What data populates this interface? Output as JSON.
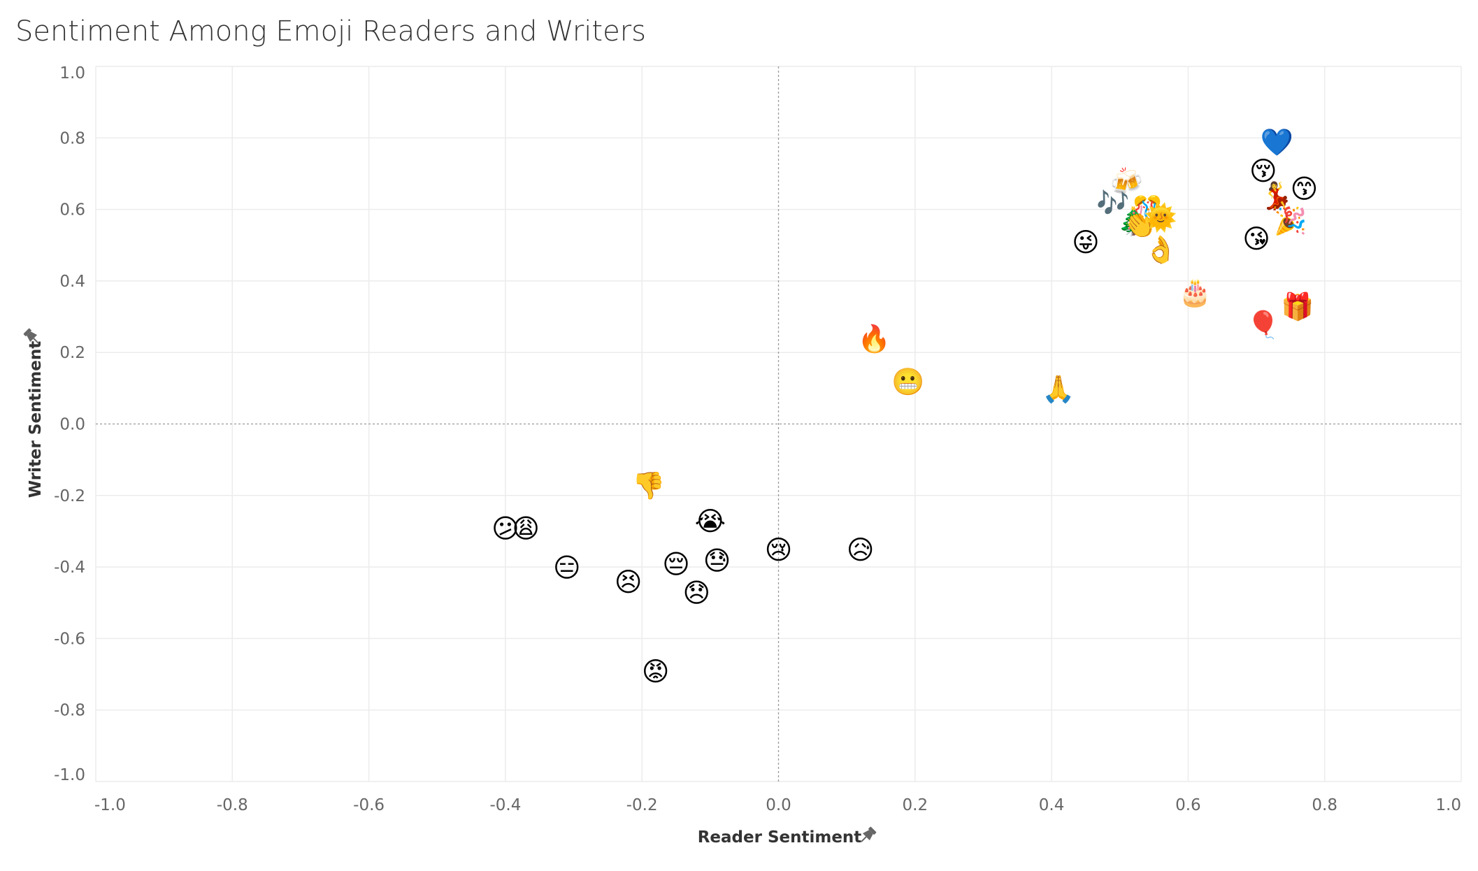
{
  "title": "Sentiment Among Emoji Readers and Writers",
  "pin_icon": "pin-icon",
  "chart_data": {
    "type": "scatter",
    "title": "Sentiment Among Emoji Readers and Writers",
    "xlabel": "Reader Sentiment",
    "ylabel": "Writer Sentiment",
    "xlim": [
      -1.0,
      1.0
    ],
    "ylim": [
      -1.0,
      1.0
    ],
    "x_ticks": [
      "-1.0",
      "-0.8",
      "-0.6",
      "-0.4",
      "-0.2",
      "0.0",
      "0.2",
      "0.4",
      "0.6",
      "0.8",
      "1.0"
    ],
    "y_ticks": [
      "1.0",
      "0.8",
      "0.6",
      "0.4",
      "0.2",
      "0.0",
      "-0.2",
      "-0.4",
      "-0.6",
      "-0.8",
      "-1.0"
    ],
    "grid": true,
    "zero_lines": "dashed",
    "points": [
      {
        "x": 0.73,
        "y": 0.79,
        "emoji": "💙",
        "name": "blue-heart"
      },
      {
        "x": 0.71,
        "y": 0.71,
        "emoji": "😚",
        "name": "kissing-closed-eyes"
      },
      {
        "x": 0.77,
        "y": 0.66,
        "emoji": "😙",
        "name": "kissing-smiling-eyes"
      },
      {
        "x": 0.51,
        "y": 0.68,
        "emoji": "🍻",
        "name": "clinking-beer-mugs"
      },
      {
        "x": 0.49,
        "y": 0.62,
        "emoji": "🎶",
        "name": "musical-notes"
      },
      {
        "x": 0.54,
        "y": 0.6,
        "emoji": "🎊",
        "name": "confetti-ball"
      },
      {
        "x": 0.52,
        "y": 0.57,
        "emoji": "🎄",
        "name": "christmas-tree"
      },
      {
        "x": 0.53,
        "y": 0.56,
        "emoji": "👏",
        "name": "clapping-hands"
      },
      {
        "x": 0.56,
        "y": 0.58,
        "emoji": "🌞",
        "name": "sun-with-face"
      },
      {
        "x": 0.73,
        "y": 0.64,
        "emoji": "💃",
        "name": "dancer"
      },
      {
        "x": 0.75,
        "y": 0.57,
        "emoji": "🎉",
        "name": "party-popper"
      },
      {
        "x": 0.7,
        "y": 0.52,
        "emoji": "😘",
        "name": "face-blowing-kiss"
      },
      {
        "x": 0.45,
        "y": 0.51,
        "emoji": "😜",
        "name": "winking-tongue"
      },
      {
        "x": 0.56,
        "y": 0.49,
        "emoji": "👌",
        "name": "ok-hand"
      },
      {
        "x": 0.61,
        "y": 0.37,
        "emoji": "🎂",
        "name": "birthday-cake"
      },
      {
        "x": 0.76,
        "y": 0.33,
        "emoji": "🎁",
        "name": "wrapped-gift"
      },
      {
        "x": 0.71,
        "y": 0.28,
        "emoji": "🎈",
        "name": "balloon"
      },
      {
        "x": 0.14,
        "y": 0.24,
        "emoji": "🔥",
        "name": "fire"
      },
      {
        "x": 0.19,
        "y": 0.12,
        "emoji": "😬",
        "name": "grimacing"
      },
      {
        "x": 0.41,
        "y": 0.1,
        "emoji": "🙏",
        "name": "folded-hands"
      },
      {
        "x": -0.19,
        "y": -0.17,
        "emoji": "👎",
        "name": "thumbs-down"
      },
      {
        "x": -0.4,
        "y": -0.29,
        "emoji": "😕",
        "name": "confused"
      },
      {
        "x": -0.37,
        "y": -0.29,
        "emoji": "😩",
        "name": "weary"
      },
      {
        "x": -0.1,
        "y": -0.27,
        "emoji": "😭",
        "name": "loudly-crying"
      },
      {
        "x": -0.31,
        "y": -0.4,
        "emoji": "😑",
        "name": "expressionless"
      },
      {
        "x": -0.22,
        "y": -0.44,
        "emoji": "😣",
        "name": "persevering"
      },
      {
        "x": -0.15,
        "y": -0.39,
        "emoji": "😔",
        "name": "pensive"
      },
      {
        "x": -0.09,
        "y": -0.38,
        "emoji": "😓",
        "name": "downcast-sweat"
      },
      {
        "x": -0.12,
        "y": -0.47,
        "emoji": "😞",
        "name": "disappointed"
      },
      {
        "x": 0.0,
        "y": -0.35,
        "emoji": "😢",
        "name": "crying"
      },
      {
        "x": 0.12,
        "y": -0.35,
        "emoji": "😥",
        "name": "sad-relieved"
      },
      {
        "x": -0.18,
        "y": -0.69,
        "emoji": "😡",
        "name": "pouting"
      }
    ]
  }
}
